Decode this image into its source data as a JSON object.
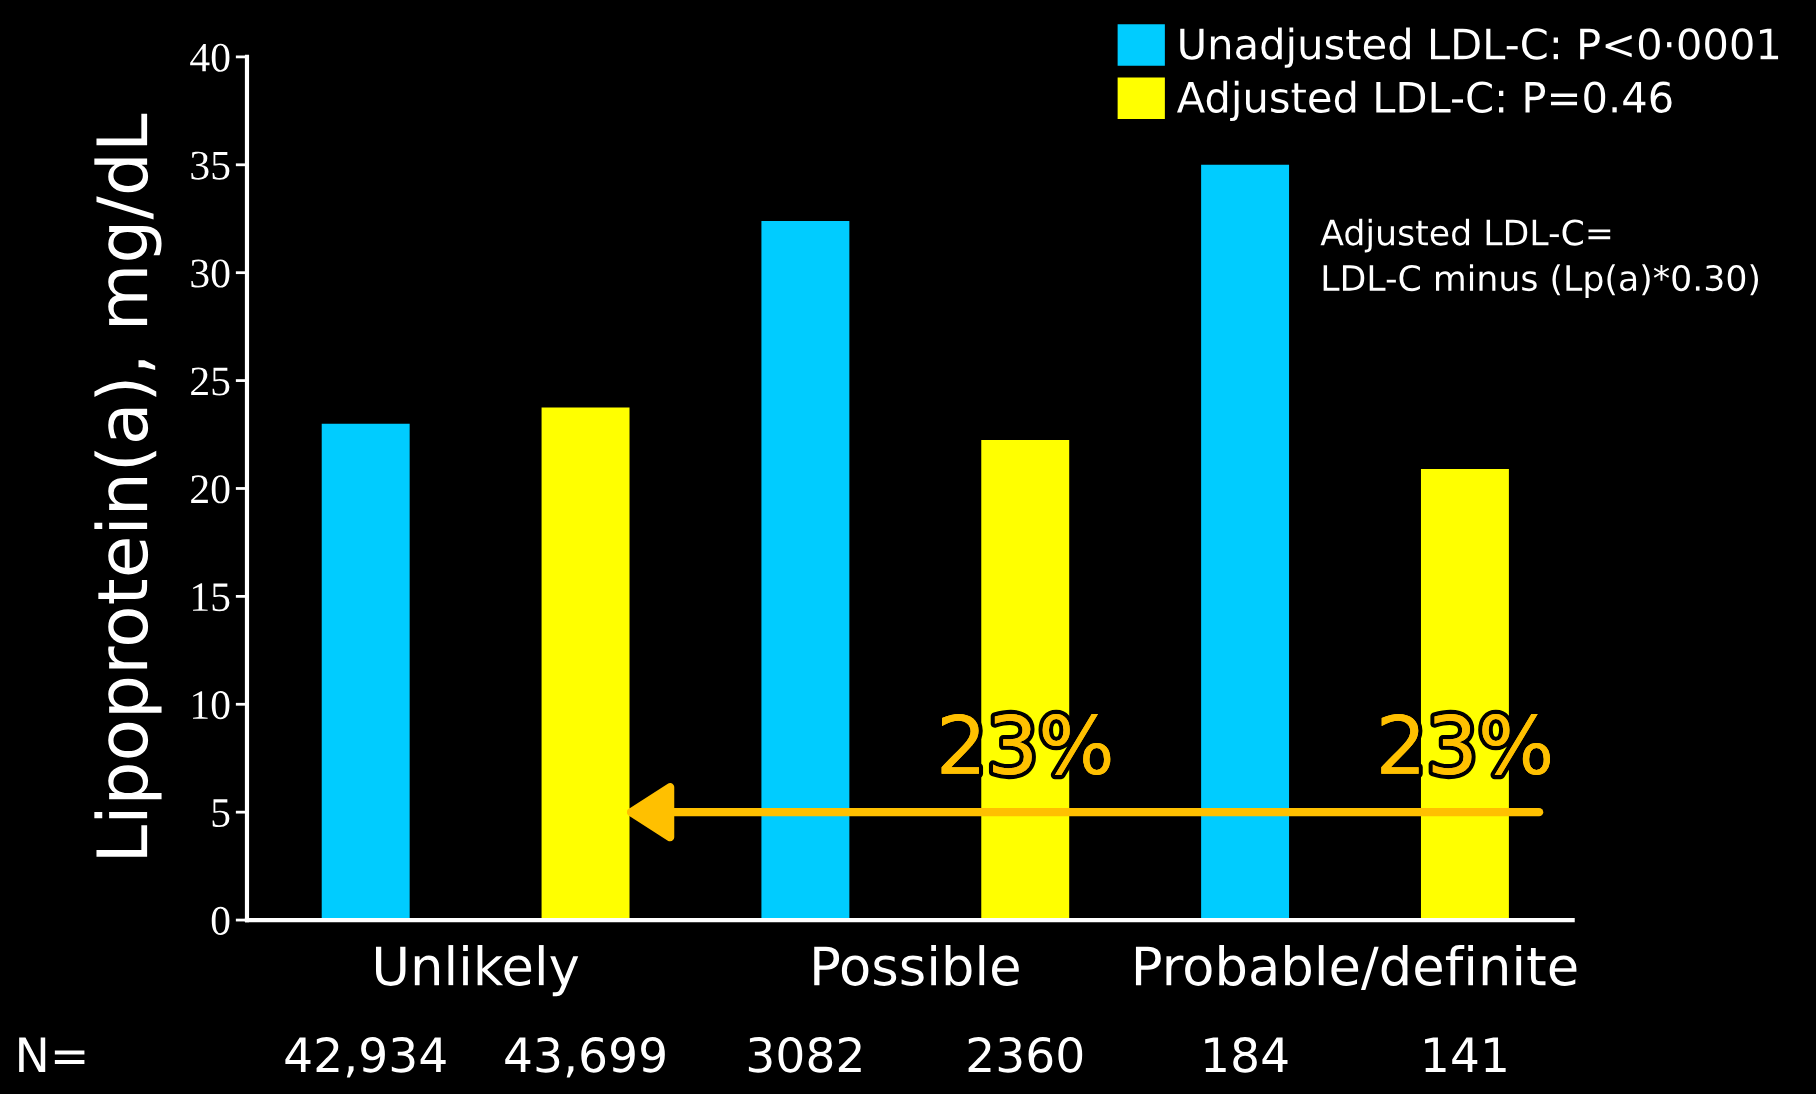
{
  "chart_data": {
    "type": "bar",
    "ylabel": "Lipoprotein(a), mg/dL",
    "categories": [
      "Unlikely",
      "Possible",
      "Probable/definite"
    ],
    "series": [
      {
        "name": "Unadjusted LDL-C: P<0·0001",
        "color": "#00ccff",
        "values": [
          23.0,
          32.4,
          35.0
        ]
      },
      {
        "name": "Adjusted LDL-C: P=0.46",
        "color": "#ffff00",
        "values": [
          23.75,
          22.25,
          20.9
        ]
      }
    ],
    "ylim": [
      0,
      40
    ],
    "yticks": [
      0,
      5,
      10,
      15,
      20,
      25,
      30,
      35,
      40
    ],
    "grid": false,
    "legend": "top right",
    "annotations": [
      "Adjusted LDL-C=\nLDL-C minus (Lp(a)*0.30)",
      "N=",
      "42,934",
      "43,699",
      "3082",
      "2360",
      "184",
      "141",
      "23%",
      "23%"
    ]
  }
}
